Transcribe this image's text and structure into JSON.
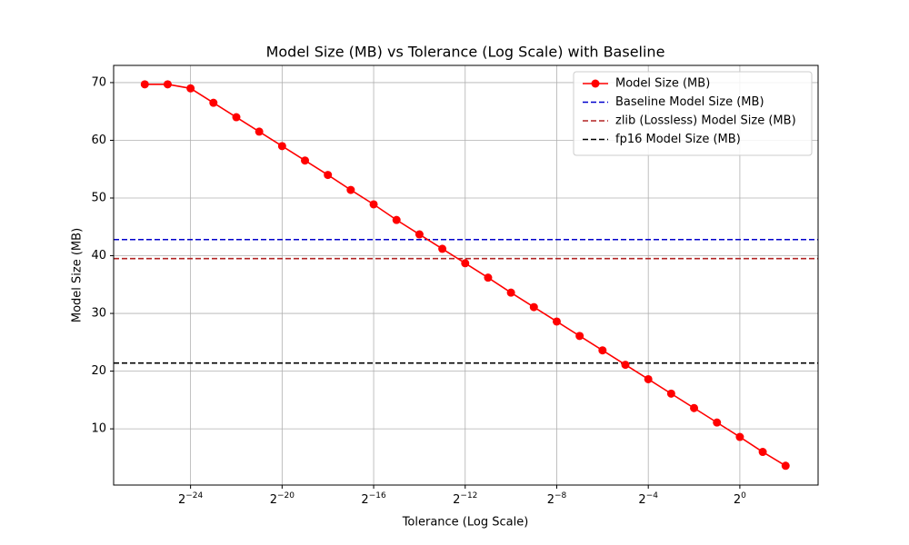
{
  "chart_data": {
    "type": "line",
    "title": "Model Size (MB) vs Tolerance (Log Scale) with Baseline",
    "x_label": "Tolerance (Log Scale)",
    "y_label": "Model Size (MB)",
    "x_scale": "log2",
    "x": [
      1.4901161193847656e-08,
      2.9802322387695312e-08,
      5.960464477539063e-08,
      1.1920928955078125e-07,
      2.384185791015625e-07,
      4.76837158203125e-07,
      9.5367431640625e-07,
      1.9073486328125e-06,
      3.814697265625e-06,
      7.62939453125e-06,
      1.52587890625e-05,
      3.0517578125e-05,
      6.103515625e-05,
      0.0001220703125,
      0.000244140625,
      0.00048828125,
      0.0009765625,
      0.001953125,
      0.00390625,
      0.0078125,
      0.015625,
      0.03125,
      0.0625,
      0.125,
      0.25,
      0.5,
      1,
      2,
      4
    ],
    "series": [
      {
        "name": "Model Size (MB)",
        "color": "#ff0000",
        "values": [
          69.7,
          69.7,
          69.0,
          66.5,
          64.0,
          61.5,
          59.0,
          56.5,
          54.0,
          51.4,
          48.9,
          46.2,
          43.7,
          41.2,
          38.7,
          36.2,
          33.6,
          31.1,
          28.6,
          26.1,
          23.6,
          21.1,
          18.6,
          16.1,
          13.6,
          11.1,
          8.6,
          6.0,
          3.6
        ]
      }
    ],
    "hlines": [
      {
        "name": "Baseline Model Size (MB)",
        "color": "#0000cc",
        "value": 42.8
      },
      {
        "name": "zlib (Lossless) Model Size (MB)",
        "color": "#b22222",
        "value": 39.5
      },
      {
        "name": "fp16 Model Size (MB)",
        "color": "#000000",
        "value": 21.4
      }
    ],
    "xlim": [
      5.8e-09,
      10.7
    ],
    "ylim": [
      0.26,
      72.98
    ],
    "xticks": [
      {
        "value": 5.960464477539063e-08,
        "label": "2−24"
      },
      {
        "value": 9.5367431640625e-07,
        "label": "2−20"
      },
      {
        "value": 1.52587890625e-05,
        "label": "2−16"
      },
      {
        "value": 0.000244140625,
        "label": "2−12"
      },
      {
        "value": 0.00390625,
        "label": "2−8"
      },
      {
        "value": 0.0625,
        "label": "2−4"
      },
      {
        "value": 1,
        "label": "20"
      }
    ],
    "yticks": [
      10,
      20,
      30,
      40,
      50,
      60,
      70
    ],
    "grid": true,
    "legend": "upper-right"
  }
}
